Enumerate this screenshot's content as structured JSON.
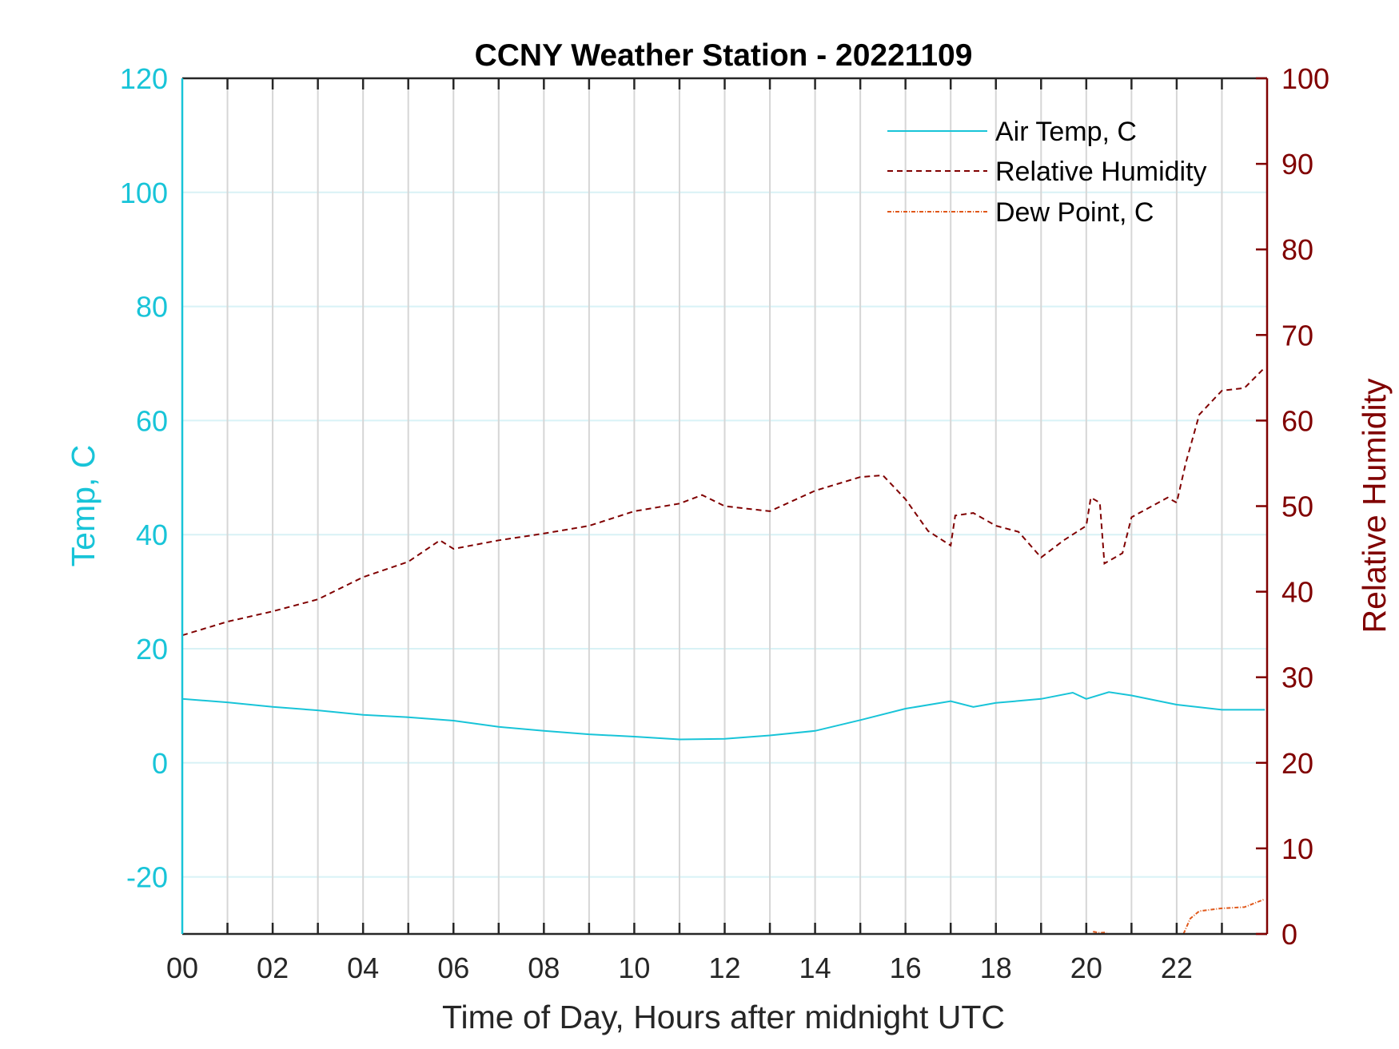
{
  "chart_data": {
    "type": "line",
    "title": "CCNY Weather Station - 20221109",
    "xlabel": "Time of Day, Hours after midnight UTC",
    "ylabel_left": "Temp, C",
    "ylabel_right": "Relative Humidity",
    "xlim": [
      0,
      24
    ],
    "ylim_left": [
      -30,
      120
    ],
    "ylim_right": [
      0,
      100
    ],
    "x_ticks": [
      0,
      2,
      4,
      6,
      8,
      10,
      12,
      14,
      16,
      18,
      20,
      22
    ],
    "x_tick_labels": [
      "00",
      "02",
      "04",
      "06",
      "08",
      "10",
      "12",
      "14",
      "16",
      "18",
      "20",
      "22"
    ],
    "y_left_ticks": [
      -20,
      0,
      20,
      40,
      60,
      80,
      100,
      120
    ],
    "y_right_ticks": [
      0,
      10,
      20,
      30,
      40,
      50,
      60,
      70,
      80,
      90,
      100
    ],
    "grid": true,
    "legend_placement": "top-right",
    "colors": {
      "temp": "#18c4d8",
      "rh": "#800000",
      "dew": "#e0581a",
      "grid_v": "#d6d6d6",
      "grid_h": "#d8f2f6",
      "axis": "#262626"
    },
    "series": [
      {
        "name": "Air Temp, C",
        "axis": "left",
        "style": "solid",
        "x": [
          0,
          1,
          2,
          3,
          4,
          5,
          6,
          7,
          8,
          9,
          10,
          11,
          12,
          13,
          14,
          15,
          16,
          17,
          17.5,
          18,
          19,
          19.7,
          20,
          20.5,
          21,
          22,
          23,
          23.95
        ],
        "y": [
          11.2,
          10.6,
          9.8,
          9.2,
          8.4,
          8.0,
          7.4,
          6.3,
          5.6,
          5.0,
          4.6,
          4.1,
          4.2,
          4.8,
          5.6,
          7.5,
          9.5,
          10.8,
          9.8,
          10.5,
          11.2,
          12.3,
          11.2,
          12.4,
          11.8,
          10.2,
          9.3,
          9.3
        ]
      },
      {
        "name": "Relative Humidity",
        "axis": "right",
        "style": "dashed",
        "x": [
          0,
          1,
          2,
          3,
          4,
          5,
          5.7,
          6,
          7,
          8,
          9,
          10,
          11,
          11.5,
          12,
          13,
          14,
          15,
          15.5,
          16,
          16.5,
          17,
          17.1,
          17.5,
          18,
          18.5,
          19,
          19.5,
          20,
          20.1,
          20.3,
          20.4,
          20.8,
          21,
          21.8,
          22,
          22.2,
          22.5,
          23,
          23.5,
          23.95
        ],
        "y": [
          34.9,
          36.5,
          37.7,
          39.1,
          41.7,
          43.5,
          46,
          45,
          46,
          46.8,
          47.7,
          49.4,
          50.3,
          51.3,
          50,
          49.4,
          51.8,
          53.4,
          53.6,
          50.8,
          47.1,
          45.4,
          48.9,
          49.2,
          47.7,
          47,
          44,
          46,
          47.7,
          51,
          50.4,
          43.3,
          44.5,
          48.7,
          51,
          50.4,
          55,
          60.7,
          63.5,
          63.8,
          66.2
        ]
      },
      {
        "name": "Dew Point, C",
        "axis": "left",
        "style": "dashdot",
        "x": [
          20.15,
          20.3,
          20.45,
          null,
          22.15,
          22.3,
          22.5,
          23,
          23.5,
          23.95
        ],
        "y": [
          -29.6,
          -29.8,
          -29.7,
          null,
          -30,
          -27.3,
          -26,
          -25.5,
          -25.3,
          -23.9
        ]
      }
    ]
  }
}
